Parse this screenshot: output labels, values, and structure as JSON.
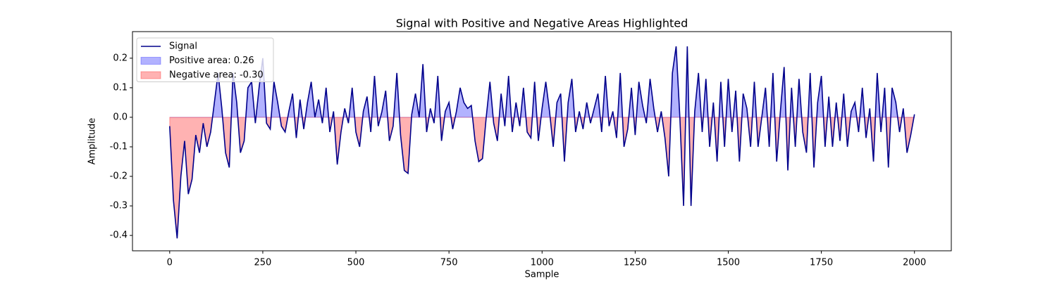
{
  "chart_data": {
    "type": "line",
    "title": "Signal with Positive and Negative Areas Highlighted",
    "xlabel": "Sample",
    "ylabel": "Amplitude",
    "x": [
      0,
      10,
      20,
      30,
      40,
      50,
      60,
      70,
      80,
      90,
      100,
      110,
      120,
      130,
      140,
      150,
      160,
      170,
      180,
      190,
      200,
      210,
      220,
      230,
      240,
      250,
      260,
      270,
      280,
      290,
      300,
      310,
      320,
      330,
      340,
      350,
      360,
      370,
      380,
      390,
      400,
      410,
      420,
      430,
      440,
      450,
      460,
      470,
      480,
      490,
      500,
      510,
      520,
      530,
      540,
      550,
      560,
      570,
      580,
      590,
      600,
      610,
      620,
      630,
      640,
      650,
      660,
      670,
      680,
      690,
      700,
      710,
      720,
      730,
      740,
      750,
      760,
      770,
      780,
      790,
      800,
      810,
      820,
      830,
      840,
      850,
      860,
      870,
      880,
      890,
      900,
      910,
      920,
      930,
      940,
      950,
      960,
      970,
      980,
      990,
      1000,
      1010,
      1020,
      1030,
      1040,
      1050,
      1060,
      1070,
      1080,
      1090,
      1100,
      1110,
      1120,
      1130,
      1140,
      1150,
      1160,
      1170,
      1180,
      1190,
      1200,
      1210,
      1220,
      1230,
      1240,
      1250,
      1260,
      1270,
      1280,
      1290,
      1300,
      1310,
      1320,
      1330,
      1340,
      1350,
      1360,
      1370,
      1380,
      1390,
      1400,
      1410,
      1420,
      1430,
      1440,
      1450,
      1460,
      1470,
      1480,
      1490,
      1500,
      1510,
      1520,
      1530,
      1540,
      1550,
      1560,
      1570,
      1580,
      1590,
      1600,
      1610,
      1620,
      1630,
      1640,
      1650,
      1660,
      1670,
      1680,
      1690,
      1700,
      1710,
      1720,
      1730,
      1740,
      1750,
      1760,
      1770,
      1780,
      1790,
      1800,
      1810,
      1820,
      1830,
      1840,
      1850,
      1860,
      1870,
      1880,
      1890,
      1900,
      1910,
      1920,
      1930,
      1940,
      1950,
      1960,
      1970,
      1980,
      1990,
      2000
    ],
    "series": [
      {
        "name": "Signal",
        "color": "#00008b",
        "values": [
          -0.03,
          -0.28,
          -0.41,
          -0.2,
          -0.08,
          -0.26,
          -0.21,
          -0.06,
          -0.12,
          -0.02,
          -0.1,
          -0.05,
          0.05,
          0.15,
          0.03,
          -0.12,
          -0.17,
          0.15,
          0.05,
          -0.12,
          -0.08,
          0.1,
          0.12,
          -0.02,
          0.1,
          0.2,
          -0.02,
          -0.04,
          0.12,
          0.05,
          -0.03,
          -0.05,
          0.02,
          0.08,
          -0.07,
          0.06,
          -0.04,
          0.05,
          0.12,
          0.0,
          0.06,
          -0.02,
          0.1,
          -0.05,
          0.02,
          -0.16,
          -0.05,
          0.03,
          -0.02,
          0.1,
          -0.05,
          -0.1,
          0.02,
          0.07,
          -0.05,
          0.14,
          -0.03,
          0.02,
          0.09,
          -0.08,
          -0.03,
          0.15,
          -0.06,
          -0.18,
          -0.19,
          0.01,
          0.08,
          0.0,
          0.18,
          -0.05,
          0.03,
          -0.02,
          0.14,
          -0.08,
          0.02,
          0.05,
          -0.04,
          0.02,
          0.1,
          0.05,
          0.03,
          0.04,
          -0.08,
          -0.15,
          -0.14,
          0.0,
          0.12,
          -0.02,
          -0.08,
          0.08,
          -0.03,
          0.14,
          -0.05,
          0.05,
          -0.03,
          0.1,
          -0.05,
          -0.07,
          0.12,
          -0.08,
          0.03,
          0.12,
          0.02,
          -0.1,
          0.05,
          0.08,
          -0.15,
          0.05,
          0.13,
          -0.05,
          0.02,
          -0.04,
          0.05,
          -0.02,
          0.03,
          0.08,
          -0.05,
          0.14,
          -0.03,
          0.02,
          -0.07,
          0.15,
          -0.1,
          -0.04,
          0.1,
          -0.06,
          0.12,
          0.04,
          -0.02,
          0.13,
          0.03,
          -0.05,
          0.02,
          -0.07,
          -0.2,
          0.15,
          0.24,
          0.0,
          -0.3,
          0.24,
          -0.3,
          0.02,
          0.15,
          -0.05,
          0.13,
          -0.1,
          0.05,
          -0.15,
          0.12,
          -0.1,
          0.13,
          -0.05,
          0.09,
          -0.15,
          0.08,
          0.03,
          -0.1,
          0.12,
          -0.1,
          0.0,
          0.1,
          -0.1,
          0.15,
          -0.15,
          0.02,
          0.17,
          -0.18,
          0.1,
          -0.1,
          0.13,
          -0.05,
          -0.12,
          0.15,
          -0.17,
          0.05,
          0.14,
          -0.1,
          0.07,
          -0.1,
          0.05,
          -0.08,
          0.08,
          -0.1,
          0.02,
          0.05,
          -0.05,
          0.1,
          -0.07,
          0.03,
          -0.15,
          0.15,
          -0.05,
          0.1,
          -0.17,
          0.1,
          0.05,
          -0.05,
          0.03,
          -0.12,
          -0.06,
          0.01
        ]
      }
    ],
    "fills": [
      {
        "name": "Positive area: 0.26",
        "color": "#0000ff",
        "where": "positive"
      },
      {
        "name": "Negative area: -0.30",
        "color": "#ff0000",
        "where": "negative"
      }
    ],
    "xlim": [
      -99.95,
      2098.95
    ],
    "ylim": [
      -0.452,
      0.29
    ],
    "xticks": [
      0,
      250,
      500,
      750,
      1000,
      1250,
      1500,
      1750,
      2000
    ],
    "yticks": [
      -0.4,
      -0.3,
      -0.2,
      -0.1,
      {
        "value": 0,
        "label": "0.0"
      },
      0.1,
      0.2
    ],
    "legend": "upper left"
  }
}
